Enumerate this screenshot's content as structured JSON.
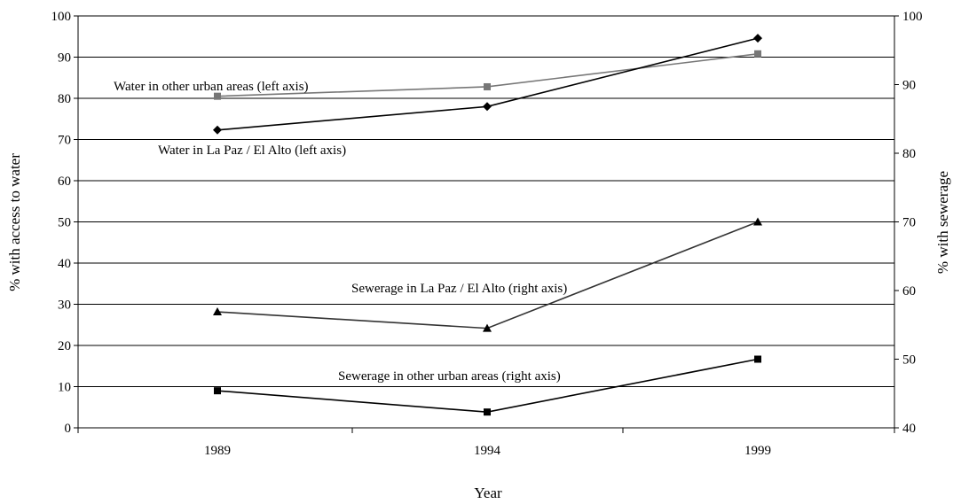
{
  "chart_data": {
    "type": "line",
    "title": "",
    "xlabel": "Year",
    "ylabel_left": "% with access to water",
    "ylabel_right": "% with sewerage",
    "categories": [
      "1989",
      "1994",
      "1999"
    ],
    "y_left_range": [
      0,
      100
    ],
    "y_left_ticks": [
      "0",
      "10",
      "20",
      "30",
      "40",
      "50",
      "60",
      "70",
      "80",
      "90",
      "100"
    ],
    "y_right_range": [
      40,
      100
    ],
    "y_right_ticks": [
      "40",
      "50",
      "60",
      "70",
      "80",
      "90",
      "100"
    ],
    "grid": true,
    "legend": "none",
    "series": [
      {
        "name": "Water in other urban areas (left axis)",
        "axis": "left",
        "marker": "square",
        "color": "#777777",
        "values": [
          80.5,
          82.8,
          90.8
        ]
      },
      {
        "name": "Water in La Paz / El Alto (left axis)",
        "axis": "left",
        "marker": "diamond",
        "color": "#000000",
        "values": [
          72.3,
          78.0,
          94.6
        ]
      },
      {
        "name": "Sewerage in La Paz / El Alto (right axis)",
        "axis": "right",
        "marker": "triangle",
        "color": "#333333",
        "values": [
          56.9,
          54.5,
          70.0
        ]
      },
      {
        "name": "Sewerage in other urban areas (right axis)",
        "axis": "right",
        "marker": "square",
        "color": "#000000",
        "values": [
          45.4,
          42.3,
          50.0
        ]
      }
    ]
  }
}
